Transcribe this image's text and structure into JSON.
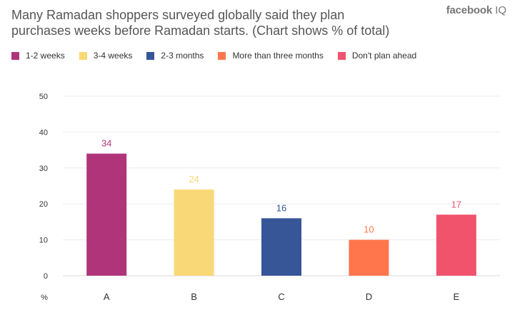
{
  "title_lines": [
    "Many Ramadan shoppers surveyed globally said they plan",
    "purchases weeks before Ramadan starts. (Chart shows % of total)"
  ],
  "brand": {
    "name": "facebook",
    "suffix": "IQ"
  },
  "legend": [
    {
      "label": "1-2 weeks",
      "color": "#B0347A"
    },
    {
      "label": "3-4 weeks",
      "color": "#F9D878"
    },
    {
      "label": "2-3 months",
      "color": "#375698"
    },
    {
      "label": "More than three months",
      "color": "#FF764D"
    },
    {
      "label": "Don't plan ahead",
      "color": "#F0536B"
    }
  ],
  "chart_data": {
    "type": "bar",
    "categories": [
      "A",
      "B",
      "C",
      "D",
      "E"
    ],
    "values": [
      34,
      24,
      16,
      10,
      17
    ],
    "colors": [
      "#B0347A",
      "#F9D878",
      "#375698",
      "#FF764D",
      "#F0536B"
    ],
    "data_labels": [
      "34",
      "24",
      "16",
      "10",
      "17"
    ],
    "ylim": [
      0,
      50
    ],
    "yticks": [
      0,
      10,
      20,
      30,
      40,
      50
    ],
    "ylabel": "%",
    "grid": true,
    "legend_position": "top-left"
  }
}
